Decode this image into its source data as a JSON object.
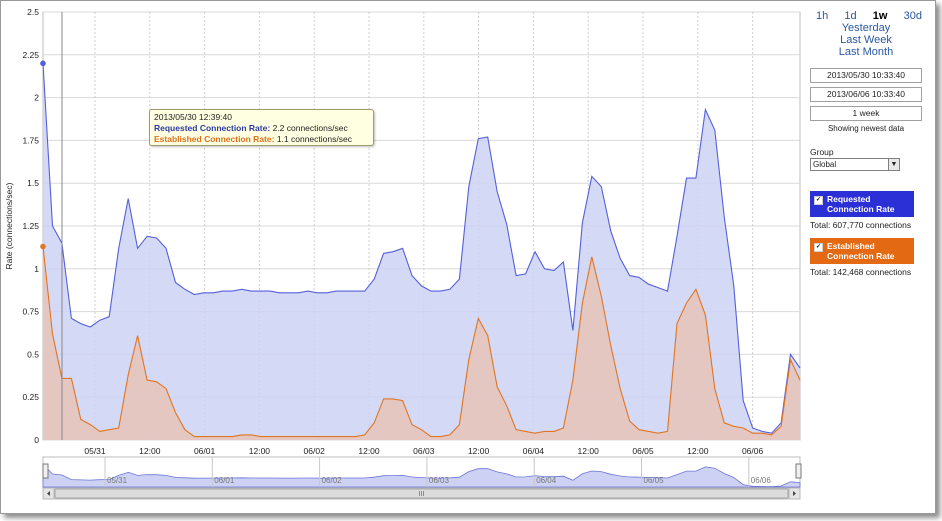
{
  "chart_data": {
    "type": "area",
    "ylabel": "Rate (connections/sec)",
    "ylim": [
      0,
      2.5
    ],
    "yticks": [
      "0",
      "0.25",
      "0.5",
      "0.75",
      "1",
      "1.25",
      "1.5",
      "1.75",
      "2",
      "2.25",
      "2.5"
    ],
    "xticks": [
      "05/31",
      "12:00",
      "06/01",
      "12:00",
      "06/02",
      "12:00",
      "06/03",
      "12:00",
      "06/04",
      "12:00",
      "06/05",
      "12:00",
      "06/06"
    ],
    "grid": true,
    "series": [
      {
        "name": "Requested Connection Rate",
        "color": "#5560d8",
        "fill": "#cdd2f4",
        "values": [
          2.2,
          1.25,
          1.15,
          0.71,
          0.68,
          0.66,
          0.7,
          0.72,
          1.12,
          1.41,
          1.12,
          1.19,
          1.18,
          1.12,
          0.92,
          0.88,
          0.85,
          0.86,
          0.86,
          0.87,
          0.87,
          0.88,
          0.87,
          0.87,
          0.87,
          0.86,
          0.86,
          0.86,
          0.87,
          0.86,
          0.86,
          0.87,
          0.87,
          0.87,
          0.87,
          0.94,
          1.09,
          1.1,
          1.12,
          0.96,
          0.9,
          0.87,
          0.87,
          0.88,
          0.94,
          1.48,
          1.76,
          1.77,
          1.45,
          1.26,
          0.96,
          0.97,
          1.1,
          1.0,
          0.99,
          1.04,
          0.64,
          1.27,
          1.54,
          1.48,
          1.22,
          1.06,
          0.96,
          0.95,
          0.91,
          0.89,
          0.87,
          1.19,
          1.53,
          1.53,
          1.93,
          1.81,
          1.3,
          0.9,
          0.23,
          0.07,
          0.05,
          0.04,
          0.1,
          0.5,
          0.42
        ]
      },
      {
        "name": "Established Connection Rate",
        "color": "#e07522",
        "fill": "#e7c3b8",
        "values": [
          1.13,
          0.62,
          0.36,
          0.36,
          0.12,
          0.09,
          0.05,
          0.06,
          0.07,
          0.38,
          0.61,
          0.35,
          0.34,
          0.3,
          0.16,
          0.06,
          0.02,
          0.02,
          0.02,
          0.02,
          0.02,
          0.03,
          0.03,
          0.02,
          0.02,
          0.02,
          0.02,
          0.02,
          0.02,
          0.02,
          0.02,
          0.02,
          0.02,
          0.02,
          0.03,
          0.1,
          0.24,
          0.24,
          0.23,
          0.09,
          0.06,
          0.02,
          0.02,
          0.03,
          0.09,
          0.47,
          0.71,
          0.61,
          0.31,
          0.2,
          0.06,
          0.05,
          0.04,
          0.05,
          0.05,
          0.07,
          0.35,
          0.8,
          1.07,
          0.84,
          0.55,
          0.3,
          0.11,
          0.06,
          0.05,
          0.04,
          0.05,
          0.68,
          0.8,
          0.88,
          0.73,
          0.3,
          0.1,
          0.08,
          0.07,
          0.04,
          0.04,
          0.03,
          0.08,
          0.47,
          0.35
        ]
      }
    ],
    "navigator_labels": [
      "05/31",
      "06/01",
      "06/02",
      "06/03",
      "06/04",
      "06/05",
      "06/06"
    ],
    "scrollbar_grip": "III"
  },
  "tooltip": {
    "timestamp": "2013/05/30 12:39:40",
    "requested_label": "Requested Connection Rate:",
    "requested_value": "2.2 connections/sec",
    "established_label": "Established Connection Rate:",
    "established_value": "1.1 connections/sec"
  },
  "sidebar": {
    "ranges_row1": [
      "1h",
      "1d",
      "1w",
      "30d"
    ],
    "active_range": "1w",
    "range_yesterday": "Yesterday",
    "range_last_week": "Last Week",
    "range_last_month": "Last Month",
    "start_time": "2013/05/30 10:33:40",
    "end_time": "2013/06/06 10:33:40",
    "duration": "1 week",
    "showing": "Showing newest data",
    "group_label": "Group",
    "group_value": "Global",
    "legend_requested": "Requested Connection Rate",
    "legend_established": "Established Connection Rate",
    "total_requested": "Total: 607,770 connections",
    "total_established": "Total: 142,468 connections",
    "checkbox_mark": "✓",
    "dropdown_arrow": "▼"
  },
  "colors": {
    "requested": "#2b2fd6",
    "established": "#e36a12",
    "grid": "#d9d9d9"
  }
}
